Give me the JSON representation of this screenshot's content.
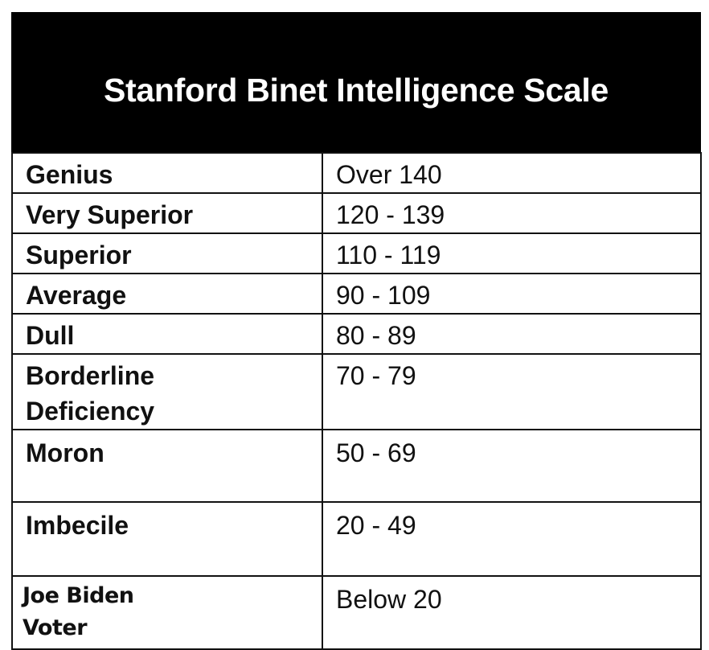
{
  "title": "Stanford Binet Intelligence Scale",
  "rows": [
    {
      "label": "Genius",
      "range": "Over 140"
    },
    {
      "label": "Very Superior",
      "range": "120 - 139"
    },
    {
      "label": "Superior",
      "range": "110 - 119"
    },
    {
      "label": "Average",
      "range": "90 - 109"
    },
    {
      "label": "Dull",
      "range": "80 - 89"
    },
    {
      "label": "Borderline Deficiency",
      "range": "70 - 79"
    },
    {
      "label": "Moron",
      "range": "50 - 69"
    },
    {
      "label": "Imbecile",
      "range": "20 - 49"
    },
    {
      "label": "Joe Biden Voter",
      "range": "Below 20"
    }
  ]
}
